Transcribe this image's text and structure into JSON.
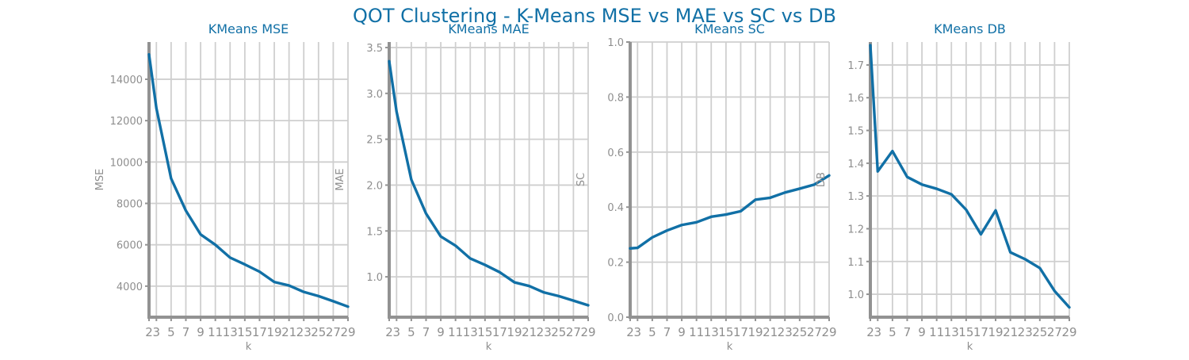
{
  "figure": {
    "title": "QOT Clustering - K-Means MSE vs MAE vs SC vs DB",
    "title_color": "#1170a6",
    "line_color": "#1170a6"
  },
  "chart_data": [
    {
      "type": "line",
      "title": "KMeans MSE",
      "xlabel": "k",
      "ylabel": "MSE",
      "x": [
        2,
        3,
        5,
        7,
        9,
        11,
        13,
        15,
        17,
        19,
        21,
        23,
        25,
        27,
        29
      ],
      "x_ticks": [
        2,
        3,
        5,
        7,
        9,
        11,
        13,
        15,
        17,
        19,
        21,
        23,
        25,
        27,
        29
      ],
      "xlim": [
        2,
        29
      ],
      "series": [
        {
          "values": [
            15200,
            12600,
            9200,
            7650,
            6500,
            6000,
            5380,
            5050,
            4700,
            4200,
            4030,
            3720,
            3520,
            3270,
            3010
          ]
        }
      ],
      "y_ticks": [
        4000,
        6000,
        8000,
        10000,
        12000,
        14000
      ],
      "ylim": [
        2500,
        15800
      ],
      "grid": true
    },
    {
      "type": "line",
      "title": "KMeans MAE",
      "xlabel": "k",
      "ylabel": "MAE",
      "x": [
        2,
        3,
        5,
        7,
        9,
        11,
        13,
        15,
        17,
        19,
        21,
        23,
        25,
        27,
        29
      ],
      "x_ticks": [
        2,
        3,
        5,
        7,
        9,
        11,
        13,
        15,
        17,
        19,
        21,
        23,
        25,
        27,
        29
      ],
      "xlim": [
        2,
        29
      ],
      "series": [
        {
          "values": [
            3.35,
            2.8,
            2.06,
            1.69,
            1.44,
            1.34,
            1.2,
            1.13,
            1.05,
            0.94,
            0.9,
            0.83,
            0.79,
            0.74,
            0.69
          ]
        }
      ],
      "y_ticks": [
        1.0,
        1.5,
        2.0,
        2.5,
        3.0,
        3.5
      ],
      "ylim": [
        0.56,
        3.56
      ],
      "grid": true
    },
    {
      "type": "line",
      "title": "KMeans SC",
      "xlabel": "k",
      "ylabel": "SC",
      "x": [
        2,
        3,
        5,
        7,
        9,
        11,
        13,
        15,
        17,
        19,
        21,
        23,
        25,
        27,
        29
      ],
      "x_ticks": [
        2,
        3,
        5,
        7,
        9,
        11,
        13,
        15,
        17,
        19,
        21,
        23,
        25,
        27,
        29
      ],
      "xlim": [
        2,
        29
      ],
      "series": [
        {
          "values": [
            0.25,
            0.252,
            0.29,
            0.315,
            0.335,
            0.345,
            0.365,
            0.373,
            0.385,
            0.427,
            0.434,
            0.453,
            0.467,
            0.482,
            0.515
          ]
        }
      ],
      "y_ticks": [
        0.0,
        0.2,
        0.4,
        0.6,
        0.8,
        1.0
      ],
      "ylim": [
        0.0,
        1.0
      ],
      "grid": true
    },
    {
      "type": "line",
      "title": "KMeans DB",
      "xlabel": "k",
      "ylabel": "DB",
      "x": [
        2,
        3,
        5,
        7,
        9,
        11,
        13,
        15,
        17,
        19,
        21,
        23,
        25,
        27,
        29
      ],
      "x_ticks": [
        2,
        3,
        5,
        7,
        9,
        11,
        13,
        15,
        17,
        19,
        21,
        23,
        25,
        27,
        29
      ],
      "xlim": [
        2,
        29
      ],
      "series": [
        {
          "values": [
            1.76,
            1.375,
            1.437,
            1.358,
            1.335,
            1.322,
            1.305,
            1.258,
            1.183,
            1.256,
            1.128,
            1.107,
            1.08,
            1.01,
            0.96
          ]
        }
      ],
      "y_ticks": [
        1.0,
        1.1,
        1.2,
        1.3,
        1.4,
        1.5,
        1.6,
        1.7
      ],
      "ylim": [
        0.93,
        1.77
      ],
      "grid": true
    }
  ]
}
